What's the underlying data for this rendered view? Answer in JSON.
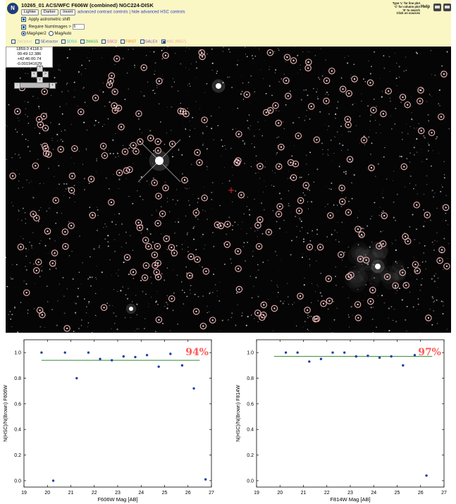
{
  "header": {
    "title": "10265_01 ACS/WFC F606W (combined) NGC224-DISK",
    "logo_glyph": "N",
    "buttons": [
      "Lighter",
      "Darker",
      "Invert"
    ],
    "link_advanced": "advanced contrast controls",
    "separator": "|",
    "link_hsc": "hide advanced HSC controls",
    "apply_astrometric": "Apply astrometric shift",
    "require_numimages": "Require NumImages >",
    "numimages_value": "5",
    "mag_options": [
      "MagAper2",
      "MagAuto"
    ],
    "mag_selected": "MagAper2",
    "catalogs": [
      {
        "label": "DAOphot",
        "color": "#c9c9a6",
        "checked": false
      },
      {
        "label": "SExtractor",
        "color": "#3347d6",
        "checked": false
      },
      {
        "label": "SDSS",
        "color": "#22b8c8",
        "checked": false
      },
      {
        "label": "2MASS",
        "color": "#1fa94a",
        "checked": false
      },
      {
        "label": "GSC2",
        "color": "#c640c8",
        "checked": false
      },
      {
        "label": "FIRST",
        "color": "#e6841c",
        "checked": false
      },
      {
        "label": "GALEX",
        "color": "#7a40c8",
        "checked": false
      },
      {
        "label": "HSC (9557)",
        "color": "#f0a0a0",
        "checked": true
      }
    ],
    "tips": [
      "Type 'L' for line plot",
      "'C' for column plot",
      "'E' to search",
      "Click on sources"
    ],
    "help_label": "Help",
    "icons": [
      "print-icon",
      "save-icon"
    ]
  },
  "readout": {
    "pixel": "1859.0 4118.0",
    "coords": "00:49:12.386 +42:46:00.74",
    "value": "-0.001941629"
  },
  "nav_buttons": [
    "<",
    "^",
    ">",
    "v",
    "-",
    "+"
  ],
  "colors": {
    "panel_bg": "#fbf7c4",
    "hsc_circle": "#f3b5b5",
    "marker": "#e8262a",
    "plot_line": "#2e8b2e",
    "plot_point": "#1f3fa8",
    "percent_label": "#ff5a5a"
  },
  "chart_data": [
    {
      "type": "scatter",
      "xlabel": "F606W Mag [AB]",
      "ylabel": "N(HSC)/N(Brown) F606W",
      "xlim": [
        19,
        27
      ],
      "ylim": [
        -0.05,
        1.1
      ],
      "xticks": [
        19,
        20,
        21,
        22,
        23,
        24,
        25,
        26,
        27
      ],
      "yticks": [
        0.0,
        0.2,
        0.4,
        0.6,
        0.8,
        1.0
      ],
      "annotation": "94%",
      "reference_line": 0.94,
      "x": [
        19.75,
        20.25,
        20.75,
        21.25,
        21.75,
        22.25,
        22.75,
        23.25,
        23.75,
        24.25,
        24.75,
        25.25,
        25.75,
        26.25,
        26.75
      ],
      "y": [
        1.0,
        0.0,
        1.0,
        0.8,
        1.0,
        0.95,
        0.94,
        0.97,
        0.965,
        0.98,
        0.89,
        0.99,
        0.9,
        0.72,
        0.01
      ]
    },
    {
      "type": "scatter",
      "xlabel": "F814W Mag [AB]",
      "ylabel": "N(HSC)/N(Brown) F814W",
      "xlim": [
        19,
        27
      ],
      "ylim": [
        -0.05,
        1.1
      ],
      "xticks": [
        19,
        20,
        21,
        22,
        23,
        24,
        25,
        26,
        27
      ],
      "yticks": [
        0.0,
        0.2,
        0.4,
        0.6,
        0.8,
        1.0
      ],
      "annotation": "97%",
      "reference_line": 0.97,
      "x": [
        20.25,
        20.75,
        21.25,
        21.75,
        22.25,
        22.75,
        23.25,
        23.75,
        24.25,
        24.75,
        25.25,
        25.75,
        26.25
      ],
      "y": [
        1.0,
        1.0,
        0.93,
        0.95,
        1.0,
        1.0,
        0.97,
        0.975,
        0.96,
        0.97,
        0.9,
        0.98,
        0.04
      ]
    }
  ]
}
